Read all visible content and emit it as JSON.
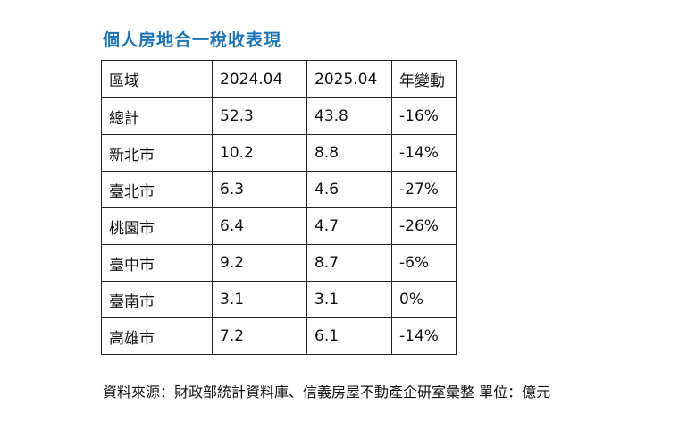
{
  "title": "個人房地合一稅收表現",
  "table": {
    "headers": [
      "區域",
      "2024.04",
      "2025.04",
      "年變動"
    ],
    "rows": [
      [
        "總計",
        "52.3",
        "43.8",
        "-16%"
      ],
      [
        "新北市",
        "10.2",
        "8.8",
        "-14%"
      ],
      [
        "臺北市",
        "6.3",
        "4.6",
        "-27%"
      ],
      [
        "桃園市",
        "6.4",
        "4.7",
        "-26%"
      ],
      [
        "臺中市",
        "9.2",
        "8.7",
        "-6%"
      ],
      [
        "臺南市",
        "3.1",
        "3.1",
        "0%"
      ],
      [
        "高雄市",
        "7.2",
        "6.1",
        "-14%"
      ]
    ]
  },
  "source": "資料來源：財政部統計資料庫、信義房屋不動產企研室彙整  單位：億元"
}
